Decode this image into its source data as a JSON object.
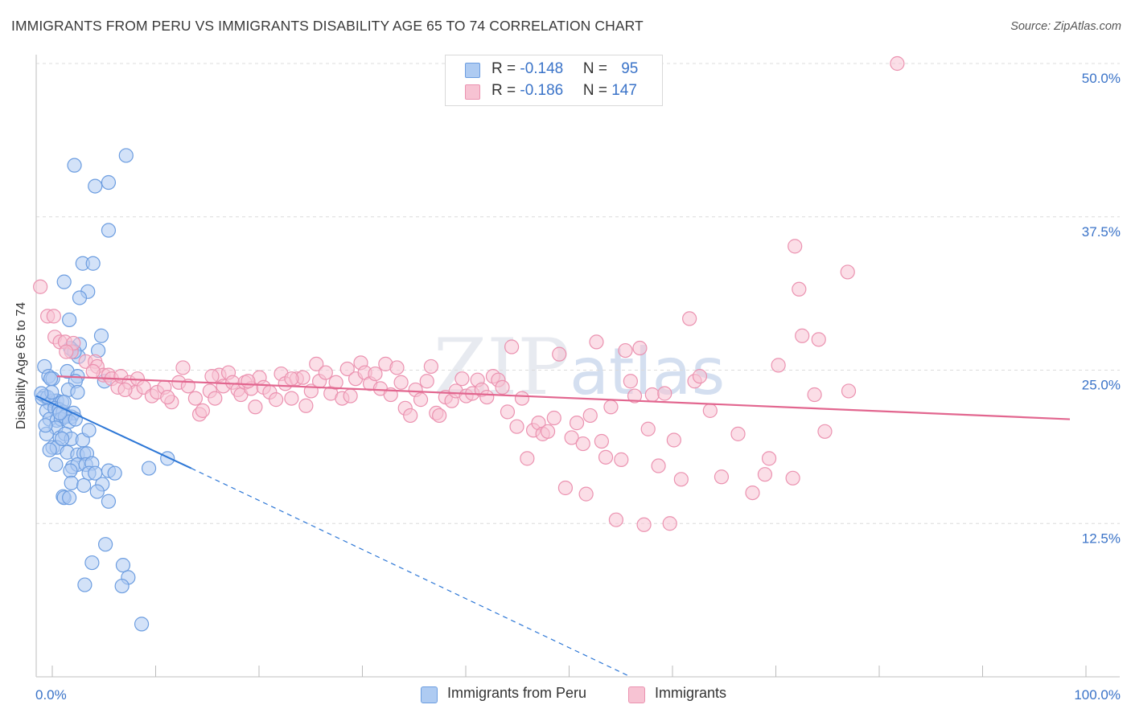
{
  "title": "IMMIGRANTS FROM PERU VS IMMIGRANTS DISABILITY AGE 65 TO 74 CORRELATION CHART",
  "source": "Source: ZipAtlas.com",
  "colors": {
    "blue_fill": "#aecbf2",
    "blue_stroke": "#6c9de0",
    "blue_line": "#2d77d6",
    "pink_fill": "#f7c3d3",
    "pink_stroke": "#eb92b0",
    "pink_line": "#e2668f",
    "tick_label": "#3a73c8",
    "grid": "#dcdcdc"
  },
  "legend_top": {
    "series1": {
      "r_label": "R = ",
      "r_value": "-0.148",
      "n_label": "N = ",
      "n_value": "95"
    },
    "series2": {
      "r_label": "R = ",
      "r_value": "-0.186",
      "n_label": "N = ",
      "n_value": "147"
    }
  },
  "legend_bottom": {
    "series1": "Immigrants from Peru",
    "series2": "Immigrants"
  },
  "chart_data": {
    "type": "scatter",
    "title": "IMMIGRANTS FROM PERU VS IMMIGRANTS DISABILITY AGE 65 TO 74 CORRELATION CHART",
    "xlabel": "",
    "ylabel": "Disability Age 65 to 74",
    "xlim": [
      0,
      100
    ],
    "ylim": [
      0,
      50
    ],
    "x_tick_labels": [
      "0.0%",
      "100.0%"
    ],
    "y_ticks": [
      12.5,
      25.0,
      37.5,
      50.0
    ],
    "y_tick_labels": [
      "12.5%",
      "25.0%",
      "37.5%",
      "50.0%"
    ],
    "watermark": "ZIPatlas",
    "series": [
      {
        "name": "Immigrants from Peru",
        "color": "#aecbf2",
        "R": -0.148,
        "N": 95,
        "trend": {
          "x": [
            0,
            15
          ],
          "y": [
            22.9,
            17.0
          ],
          "dashed_to": [
            57.5,
            0
          ]
        },
        "points": [
          [
            8.7,
            42.5
          ],
          [
            3.7,
            41.7
          ],
          [
            5.7,
            40.0
          ],
          [
            7.0,
            40.3
          ],
          [
            7.0,
            36.4
          ],
          [
            4.5,
            33.7
          ],
          [
            5.5,
            33.7
          ],
          [
            2.7,
            32.2
          ],
          [
            5.0,
            31.4
          ],
          [
            4.2,
            30.9
          ],
          [
            3.2,
            29.1
          ],
          [
            6.3,
            27.8
          ],
          [
            4.2,
            27.1
          ],
          [
            3.4,
            26.7
          ],
          [
            6.0,
            26.6
          ],
          [
            0.8,
            25.3
          ],
          [
            1.2,
            24.5
          ],
          [
            1.6,
            24.3
          ],
          [
            3.0,
            24.9
          ],
          [
            4.0,
            24.5
          ],
          [
            3.8,
            24.1
          ],
          [
            6.6,
            24.1
          ],
          [
            0.8,
            22.9
          ],
          [
            1.3,
            22.3
          ],
          [
            1.6,
            22.5
          ],
          [
            2.0,
            22.5
          ],
          [
            2.5,
            22.4
          ],
          [
            3.1,
            23.4
          ],
          [
            4.0,
            23.2
          ],
          [
            1.0,
            21.7
          ],
          [
            1.8,
            21.9
          ],
          [
            2.2,
            21.8
          ],
          [
            2.6,
            21.6
          ],
          [
            2.9,
            21.3
          ],
          [
            3.4,
            21.2
          ],
          [
            3.6,
            21.5
          ],
          [
            1.3,
            21.0
          ],
          [
            2.0,
            20.9
          ],
          [
            2.4,
            21.0
          ],
          [
            2.8,
            21.2
          ],
          [
            3.2,
            20.8
          ],
          [
            3.8,
            21.0
          ],
          [
            1.9,
            20.3
          ],
          [
            1.0,
            19.8
          ],
          [
            2.3,
            19.5
          ],
          [
            2.8,
            19.8
          ],
          [
            3.4,
            19.4
          ],
          [
            4.5,
            19.3
          ],
          [
            5.1,
            20.1
          ],
          [
            1.6,
            18.7
          ],
          [
            2.0,
            18.7
          ],
          [
            1.3,
            18.5
          ],
          [
            3.0,
            18.3
          ],
          [
            4.0,
            18.1
          ],
          [
            4.6,
            18.2
          ],
          [
            4.9,
            18.2
          ],
          [
            1.9,
            17.3
          ],
          [
            3.5,
            17.1
          ],
          [
            4.0,
            17.3
          ],
          [
            4.8,
            17.3
          ],
          [
            5.4,
            17.4
          ],
          [
            3.3,
            16.8
          ],
          [
            5.1,
            16.6
          ],
          [
            5.7,
            16.6
          ],
          [
            7.0,
            16.8
          ],
          [
            7.6,
            16.6
          ],
          [
            10.9,
            17.0
          ],
          [
            12.7,
            17.8
          ],
          [
            3.4,
            15.8
          ],
          [
            4.6,
            15.6
          ],
          [
            6.4,
            15.7
          ],
          [
            5.9,
            15.1
          ],
          [
            2.6,
            14.7
          ],
          [
            2.7,
            14.6
          ],
          [
            3.2,
            14.6
          ],
          [
            7.0,
            14.3
          ],
          [
            6.7,
            10.8
          ],
          [
            5.4,
            9.3
          ],
          [
            8.4,
            9.1
          ],
          [
            8.9,
            8.1
          ],
          [
            4.7,
            7.5
          ],
          [
            8.3,
            7.4
          ],
          [
            10.2,
            4.3
          ],
          [
            0.6,
            22.7
          ],
          [
            1.1,
            22.8
          ],
          [
            1.5,
            23.2
          ],
          [
            2.3,
            21.5
          ],
          [
            0.5,
            23.1
          ],
          [
            2.7,
            22.4
          ],
          [
            1.4,
            24.3
          ],
          [
            0.9,
            20.5
          ],
          [
            3.3,
            26.8
          ],
          [
            4.1,
            26.1
          ],
          [
            3.7,
            26.5
          ],
          [
            2.5,
            19.4
          ]
        ]
      },
      {
        "name": "Immigrants",
        "color": "#f7c3d3",
        "R": -0.186,
        "N": 147,
        "trend": {
          "x": [
            2,
            100
          ],
          "y": [
            24.5,
            21.0
          ]
        },
        "points": [
          [
            83.3,
            50.0
          ],
          [
            0.4,
            31.8
          ],
          [
            1.1,
            29.4
          ],
          [
            1.7,
            29.4
          ],
          [
            1.8,
            27.7
          ],
          [
            2.3,
            27.3
          ],
          [
            2.8,
            27.3
          ],
          [
            3.4,
            26.5
          ],
          [
            3.6,
            27.2
          ],
          [
            4.8,
            25.7
          ],
          [
            5.7,
            25.7
          ],
          [
            5.9,
            25.3
          ],
          [
            6.5,
            24.6
          ],
          [
            7.0,
            24.6
          ],
          [
            7.3,
            24.3
          ],
          [
            7.9,
            23.6
          ],
          [
            8.2,
            24.5
          ],
          [
            9.0,
            24.0
          ],
          [
            9.6,
            23.2
          ],
          [
            9.8,
            24.3
          ],
          [
            10.4,
            23.6
          ],
          [
            11.2,
            22.9
          ],
          [
            11.7,
            23.2
          ],
          [
            12.4,
            23.6
          ],
          [
            13.1,
            22.4
          ],
          [
            13.8,
            24.0
          ],
          [
            14.2,
            25.2
          ],
          [
            14.7,
            23.7
          ],
          [
            15.4,
            22.7
          ],
          [
            15.8,
            21.4
          ],
          [
            16.1,
            21.7
          ],
          [
            16.8,
            23.3
          ],
          [
            17.3,
            22.7
          ],
          [
            17.7,
            24.6
          ],
          [
            18.1,
            23.7
          ],
          [
            18.6,
            24.8
          ],
          [
            19.0,
            24.0
          ],
          [
            19.5,
            23.4
          ],
          [
            19.8,
            23.0
          ],
          [
            20.2,
            24.0
          ],
          [
            20.8,
            23.5
          ],
          [
            21.2,
            22.0
          ],
          [
            21.6,
            24.4
          ],
          [
            22.0,
            23.6
          ],
          [
            22.6,
            23.2
          ],
          [
            23.2,
            22.6
          ],
          [
            23.7,
            24.7
          ],
          [
            24.1,
            23.9
          ],
          [
            24.7,
            22.7
          ],
          [
            25.2,
            24.3
          ],
          [
            25.8,
            24.4
          ],
          [
            26.1,
            22.1
          ],
          [
            26.6,
            23.3
          ],
          [
            27.1,
            25.5
          ],
          [
            27.4,
            24.1
          ],
          [
            28.0,
            24.8
          ],
          [
            28.5,
            23.1
          ],
          [
            29.0,
            24.0
          ],
          [
            29.6,
            22.7
          ],
          [
            30.1,
            25.1
          ],
          [
            30.4,
            22.9
          ],
          [
            30.9,
            24.3
          ],
          [
            31.4,
            25.6
          ],
          [
            31.8,
            24.8
          ],
          [
            32.3,
            23.9
          ],
          [
            32.8,
            24.7
          ],
          [
            33.3,
            23.5
          ],
          [
            33.8,
            25.5
          ],
          [
            34.3,
            23.0
          ],
          [
            34.9,
            25.2
          ],
          [
            35.3,
            24.0
          ],
          [
            35.7,
            21.9
          ],
          [
            36.2,
            21.3
          ],
          [
            36.7,
            23.4
          ],
          [
            37.2,
            22.6
          ],
          [
            37.8,
            24.1
          ],
          [
            38.2,
            25.3
          ],
          [
            38.7,
            21.5
          ],
          [
            39.0,
            21.3
          ],
          [
            39.6,
            22.8
          ],
          [
            40.2,
            22.5
          ],
          [
            40.6,
            23.3
          ],
          [
            41.2,
            24.3
          ],
          [
            41.6,
            22.9
          ],
          [
            42.2,
            23.1
          ],
          [
            42.7,
            24.2
          ],
          [
            43.1,
            23.4
          ],
          [
            43.6,
            22.8
          ],
          [
            44.2,
            24.5
          ],
          [
            44.7,
            24.2
          ],
          [
            45.1,
            23.6
          ],
          [
            45.6,
            21.6
          ],
          [
            46.0,
            26.9
          ],
          [
            46.5,
            20.4
          ],
          [
            47.0,
            22.7
          ],
          [
            47.5,
            17.8
          ],
          [
            48.1,
            20.1
          ],
          [
            48.6,
            20.7
          ],
          [
            49.0,
            19.8
          ],
          [
            49.5,
            20.0
          ],
          [
            50.1,
            21.1
          ],
          [
            50.6,
            26.3
          ],
          [
            51.2,
            15.4
          ],
          [
            51.8,
            19.5
          ],
          [
            52.3,
            20.7
          ],
          [
            52.9,
            19.0
          ],
          [
            53.2,
            14.9
          ],
          [
            53.6,
            21.3
          ],
          [
            54.2,
            27.3
          ],
          [
            54.7,
            19.2
          ],
          [
            55.1,
            17.9
          ],
          [
            55.6,
            22.0
          ],
          [
            56.1,
            12.8
          ],
          [
            56.6,
            17.7
          ],
          [
            57.0,
            26.6
          ],
          [
            57.5,
            24.1
          ],
          [
            57.9,
            22.9
          ],
          [
            58.4,
            26.8
          ],
          [
            58.8,
            12.4
          ],
          [
            59.2,
            20.2
          ],
          [
            59.6,
            23.0
          ],
          [
            60.2,
            17.2
          ],
          [
            60.8,
            23.1
          ],
          [
            61.3,
            12.5
          ],
          [
            61.7,
            19.3
          ],
          [
            62.4,
            16.1
          ],
          [
            63.2,
            29.2
          ],
          [
            63.7,
            24.1
          ],
          [
            64.2,
            24.5
          ],
          [
            65.2,
            21.7
          ],
          [
            66.3,
            16.3
          ],
          [
            67.9,
            19.8
          ],
          [
            69.3,
            15.0
          ],
          [
            70.5,
            16.5
          ],
          [
            70.9,
            17.8
          ],
          [
            71.8,
            25.4
          ],
          [
            73.2,
            16.2
          ],
          [
            73.4,
            35.1
          ],
          [
            73.8,
            31.6
          ],
          [
            74.1,
            27.8
          ],
          [
            75.3,
            23.0
          ],
          [
            75.7,
            27.5
          ],
          [
            76.3,
            20.0
          ],
          [
            78.5,
            33.0
          ],
          [
            78.6,
            23.3
          ],
          [
            2.9,
            26.5
          ],
          [
            5.5,
            24.9
          ],
          [
            8.6,
            23.4
          ],
          [
            12.7,
            22.8
          ],
          [
            17.0,
            24.5
          ],
          [
            20.5,
            24.1
          ],
          [
            24.7,
            24.3
          ]
        ]
      }
    ]
  }
}
